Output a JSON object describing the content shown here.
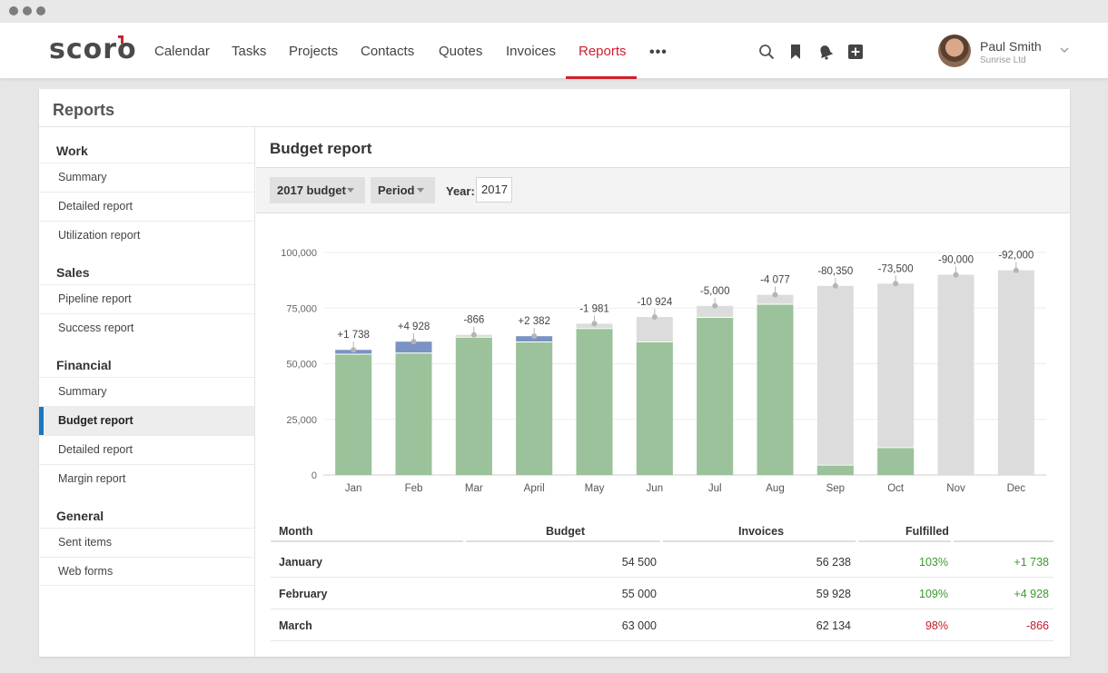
{
  "brand": {
    "logo_text": "scoro",
    "accent": "#d0202e"
  },
  "nav": {
    "items": [
      "Calendar",
      "Tasks",
      "Projects",
      "Contacts",
      "Quotes",
      "Invoices",
      "Reports"
    ],
    "active": "Reports",
    "more": "•••"
  },
  "top_icons": [
    "search-icon",
    "bookmark-icon",
    "bell-icon",
    "add-icon"
  ],
  "user": {
    "name": "Paul Smith",
    "company": "Sunrise Ltd"
  },
  "page": {
    "title": "Reports"
  },
  "sidebar": {
    "groups": [
      {
        "label": "Work",
        "items": [
          "Summary",
          "Detailed report",
          "Utilization report"
        ]
      },
      {
        "label": "Sales",
        "items": [
          "Pipeline report",
          "Success report"
        ]
      },
      {
        "label": "Financial",
        "items": [
          "Summary",
          "Budget report",
          "Detailed report",
          "Margin report"
        ]
      },
      {
        "label": "General",
        "items": [
          "Sent items",
          "Web forms"
        ]
      }
    ],
    "active_item": "Budget report",
    "active_color": "#1a78c2"
  },
  "report": {
    "title": "Budget report",
    "filters": {
      "budget": "2017 budget",
      "period": "Period",
      "year_label": "Year:",
      "year_value": "2017"
    }
  },
  "chart_data": {
    "type": "bar",
    "categories": [
      "Jan",
      "Feb",
      "Mar",
      "April",
      "May",
      "Jun",
      "Jul",
      "Aug",
      "Sep",
      "Oct",
      "Nov",
      "Dec"
    ],
    "series": [
      {
        "values": [
          54500,
          55000,
          63000,
          60000,
          68000,
          71000,
          76000,
          81000,
          85000,
          86000,
          90000,
          92000
        ]
      },
      {
        "values": [
          56238,
          59928,
          62134,
          62382,
          66019,
          60076,
          71000,
          76923,
          4650,
          12500,
          0,
          0
        ]
      }
    ],
    "data_labels": [
      "+1 738",
      "+4 928",
      "-866",
      "+2 382",
      "-1 981",
      "-10 924",
      "-5,000",
      "-4 077",
      "-80,350",
      "-73,500",
      "-90,000",
      "-92,000"
    ],
    "ylim": [
      0,
      100000
    ],
    "yticks": [
      "0",
      "25,000",
      "50,000",
      "75,000",
      "100,000"
    ],
    "grid": true,
    "colors": {
      "fulfilled": "#9bc29a",
      "budget": "#dcdcdc",
      "over": "#7b93c2",
      "marker": "#b5b5b5"
    }
  },
  "table": {
    "headers": [
      "Month",
      "Budget",
      "Invoices",
      "Fulfilled",
      ""
    ],
    "rows": [
      {
        "month": "January",
        "budget": "54 500",
        "invoices": "56 238",
        "fulfilled": "103%",
        "diff": "+1 738"
      },
      {
        "month": "February",
        "budget": "55 000",
        "invoices": "59 928",
        "fulfilled": "109%",
        "diff": "+4 928"
      },
      {
        "month": "March",
        "budget": "63 000",
        "invoices": "62 134",
        "fulfilled": "98%",
        "diff": "-866"
      }
    ]
  }
}
